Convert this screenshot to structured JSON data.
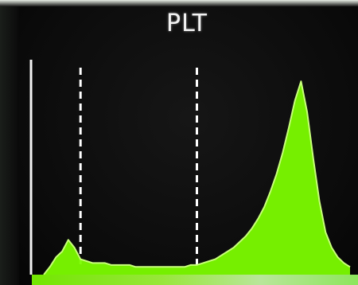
{
  "chart_data": {
    "type": "area",
    "title": "PLT",
    "xlabel": "",
    "ylabel": "",
    "grid": false,
    "x": [
      0,
      2,
      4,
      6,
      8,
      10,
      12,
      14,
      16,
      18,
      20,
      22,
      24,
      26,
      28,
      30,
      32,
      34,
      36,
      38,
      40,
      42,
      44,
      46,
      48,
      50,
      52,
      54,
      56,
      58,
      60,
      62,
      64,
      66,
      68,
      70,
      72,
      74,
      76,
      78,
      80,
      82,
      84,
      86,
      88,
      90,
      92,
      94,
      96,
      98,
      100
    ],
    "values": [
      0,
      4,
      9,
      12,
      18,
      14,
      8,
      7,
      6,
      6,
      6,
      5,
      5,
      5,
      5,
      4,
      4,
      4,
      4,
      4,
      4,
      4,
      4,
      4,
      5,
      5,
      6,
      7,
      8,
      10,
      12,
      14,
      17,
      20,
      24,
      29,
      35,
      43,
      52,
      63,
      76,
      90,
      100,
      84,
      60,
      38,
      22,
      14,
      9,
      6,
      4
    ],
    "ylim": [
      0,
      105
    ],
    "xlim": [
      0,
      100
    ],
    "thresholds": [
      12,
      50
    ],
    "fill_color": "#7cfc00",
    "threshold_color": "#ffffff"
  }
}
